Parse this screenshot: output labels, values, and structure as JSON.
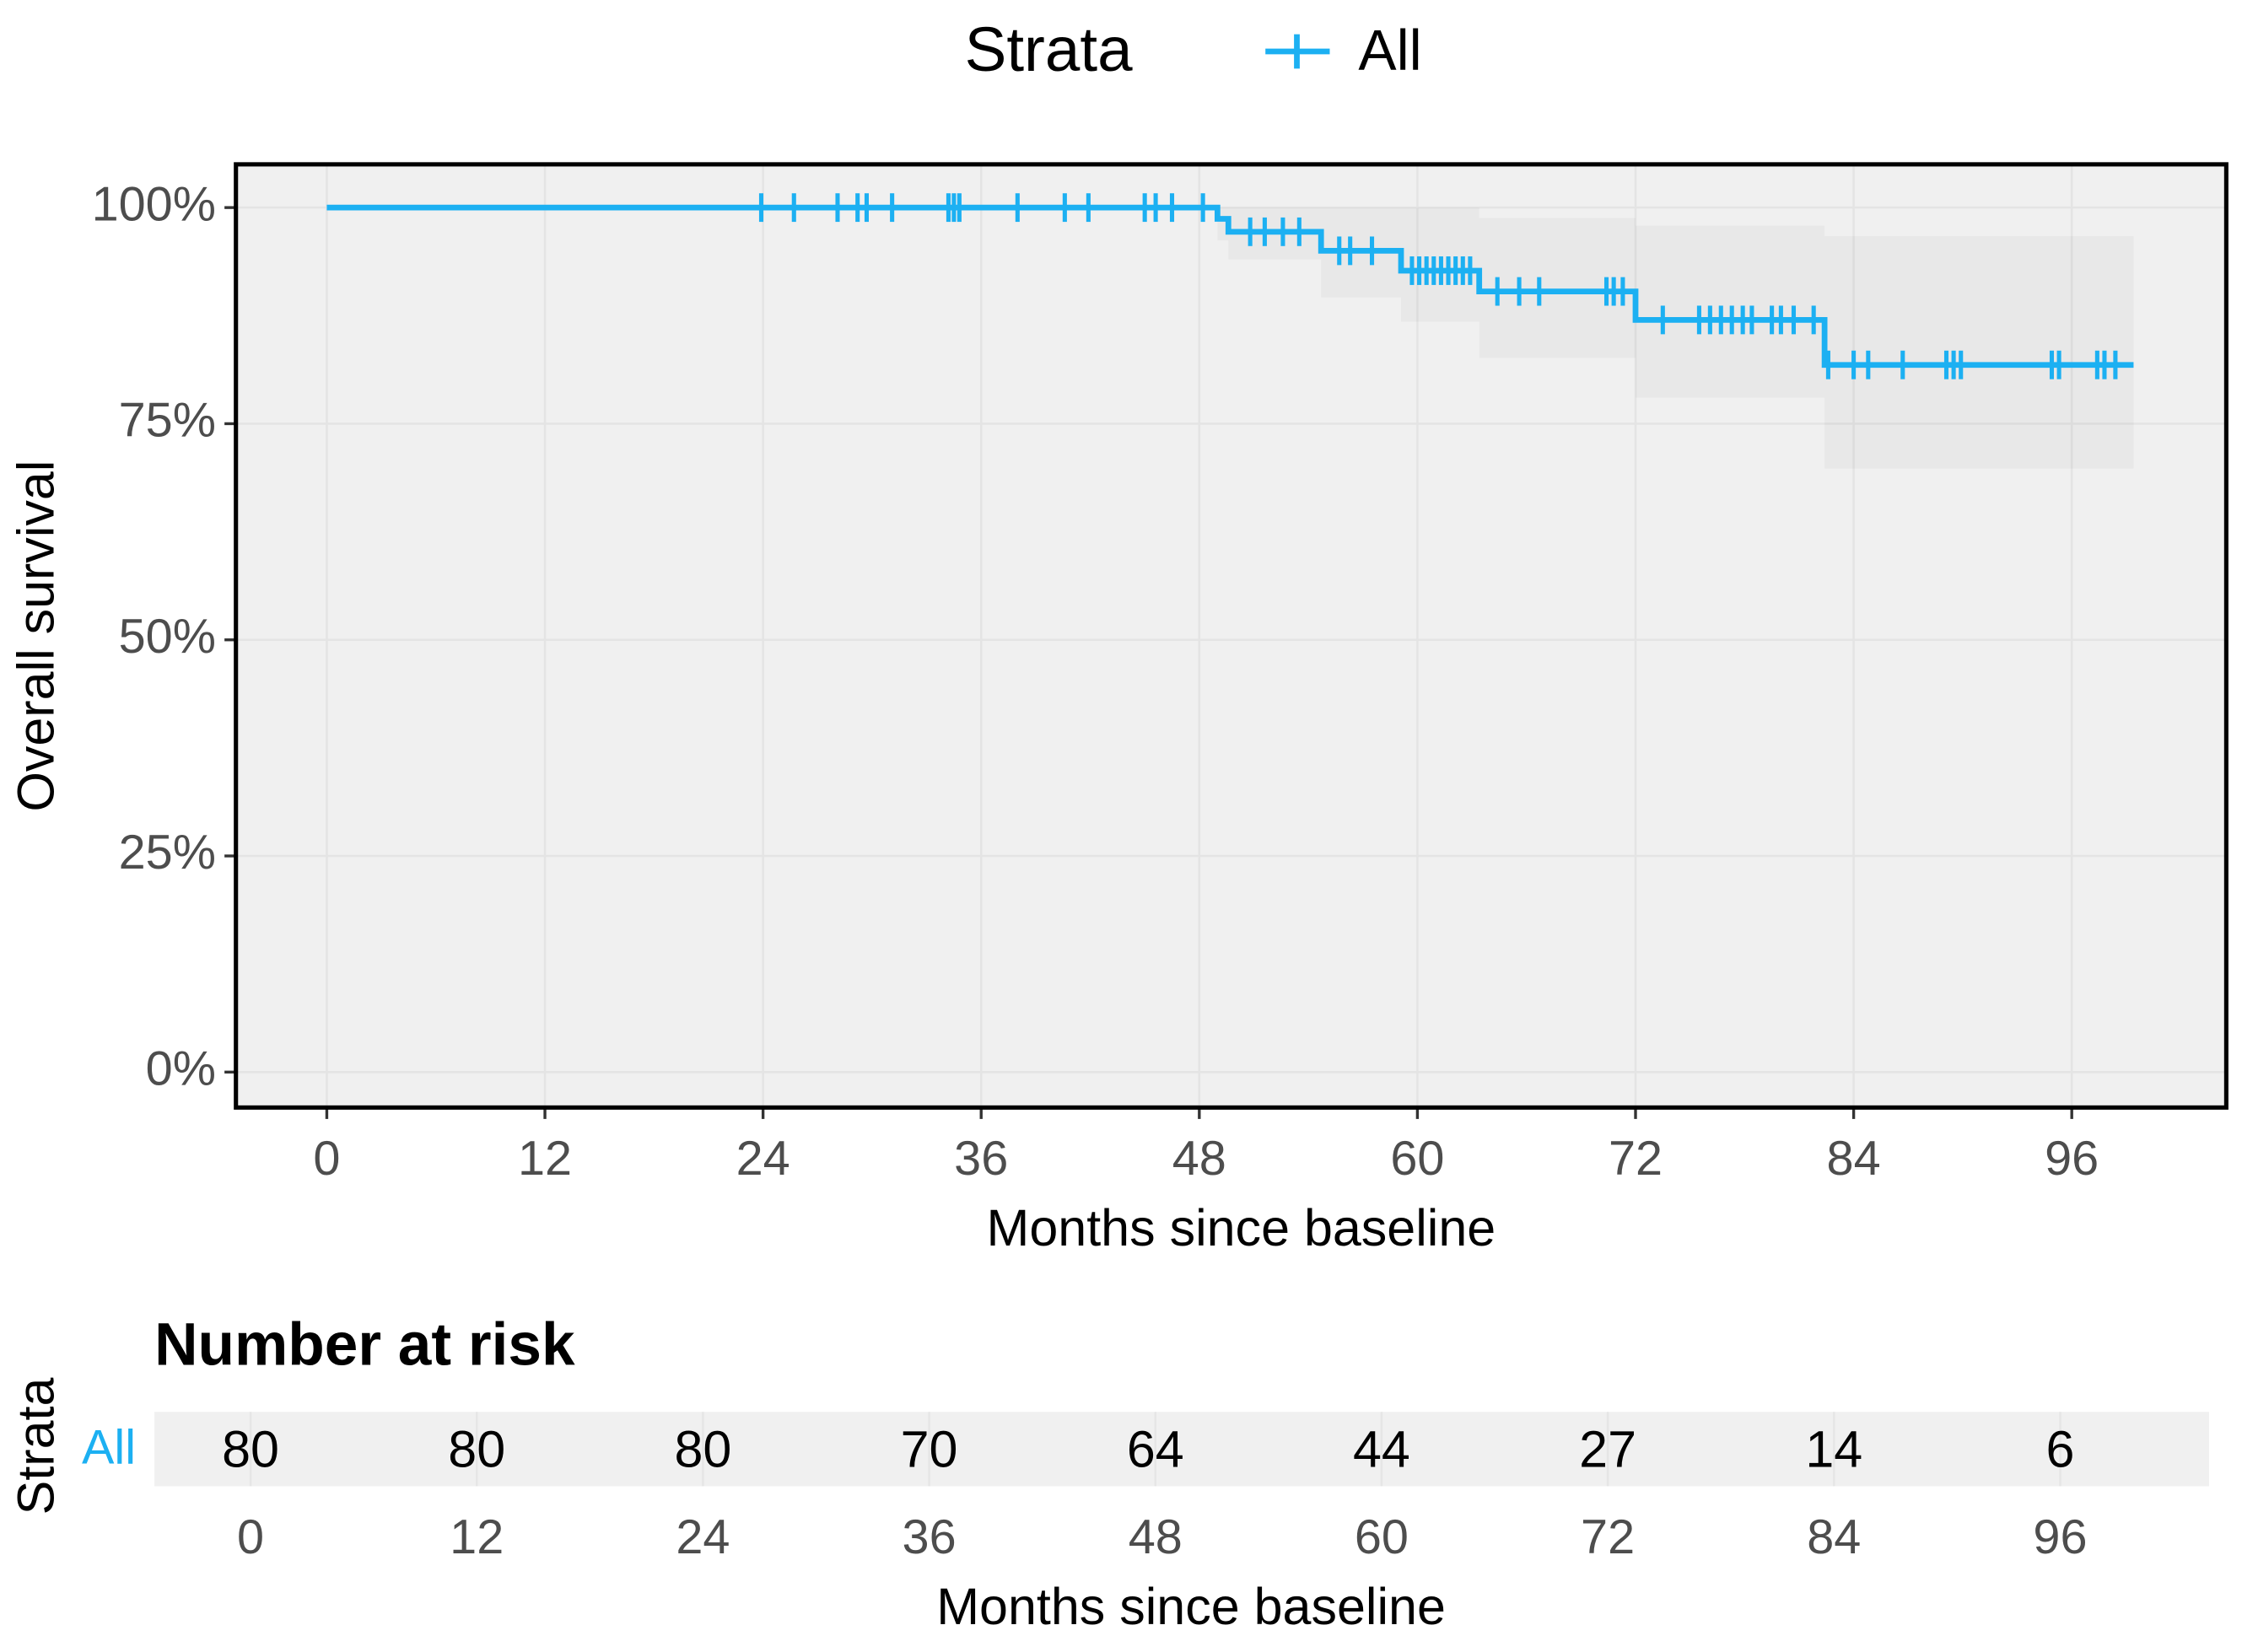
{
  "chart_data": [
    {
      "type": "survival",
      "x_label": "Months since baseline",
      "y_label": "Overall survival",
      "legend_title": "Strata",
      "legend": "top",
      "xlim": [
        -5,
        104.5
      ],
      "ylim": [
        -4.1,
        105
      ],
      "xticks": [
        0,
        12,
        24,
        36,
        48,
        60,
        72,
        84,
        96
      ],
      "yticks": [
        {
          "value": 0,
          "label": "0%"
        },
        {
          "value": 25,
          "label": "25%"
        },
        {
          "value": 50,
          "label": "50%"
        },
        {
          "value": 75,
          "label": "75%"
        },
        {
          "value": 100,
          "label": "100%"
        }
      ],
      "grid": true,
      "series": [
        {
          "name": "All",
          "color": "#1cb0f2",
          "x": [
            0,
            49,
            49,
            49.6,
            49.6,
            54.7,
            54.7,
            59.1,
            59.1,
            63.4,
            63.4,
            72,
            72,
            82.4,
            82.4,
            99.4
          ],
          "values": [
            100,
            100,
            98.7,
            98.7,
            97.2,
            97.2,
            95,
            95,
            92.7,
            92.7,
            90.3,
            90.3,
            87,
            87,
            81.8,
            81.8
          ],
          "lower": [
            100,
            100,
            96.2,
            96.2,
            94,
            94,
            89.6,
            89.6,
            86.8,
            86.8,
            82.6,
            82.6,
            78,
            78,
            69.8,
            69.8
          ],
          "upper": [
            100,
            100,
            100,
            100,
            100,
            100,
            100,
            100,
            100,
            100,
            98.8,
            98.8,
            97.9,
            97.9,
            96.7,
            96.7
          ],
          "censor": {
            "x": [
              23.9,
              25.7,
              28.1,
              29.2,
              29.7,
              31.1,
              34.2,
              34.5,
              34.8,
              38.0,
              40.6,
              41.9,
              45.0,
              45.6,
              46.5,
              48.2,
              50.8,
              51.6,
              52.6,
              53.5,
              55.7,
              56.3,
              57.5,
              59.7,
              60.1,
              60.5,
              60.9,
              61.3,
              61.7,
              62.1,
              62.5,
              62.9,
              64.4,
              65.6,
              66.7,
              70.4,
              70.8,
              71.3,
              73.5,
              75.5,
              76.1,
              76.7,
              77.3,
              77.9,
              78.4,
              79.5,
              80.0,
              80.7,
              81.8,
              82.6,
              84.0,
              84.8,
              86.7,
              89.1,
              89.5,
              89.9,
              94.9,
              95.3,
              97.4,
              97.8,
              98.4
            ],
            "values": [
              100,
              100,
              100,
              100,
              100,
              100,
              100,
              100,
              100,
              100,
              100,
              100,
              100,
              100,
              100,
              100,
              97.2,
              97.2,
              97.2,
              97.2,
              95,
              95,
              95,
              92.7,
              92.7,
              92.7,
              92.7,
              92.7,
              92.7,
              92.7,
              92.7,
              92.7,
              90.3,
              90.3,
              90.3,
              90.3,
              90.3,
              90.3,
              87,
              87,
              87,
              87,
              87,
              87,
              87,
              87,
              87,
              87,
              87,
              81.8,
              81.8,
              81.8,
              81.8,
              81.8,
              81.8,
              81.8,
              81.8,
              81.8,
              81.8,
              81.8,
              81.8
            ]
          }
        }
      ]
    },
    {
      "type": "risk_table",
      "title": "Number at risk",
      "x_label": "Months since baseline",
      "y_label": "Strata",
      "xlim": [
        -5.1,
        103.9
      ],
      "xticks": [
        0,
        12,
        24,
        36,
        48,
        60,
        72,
        84,
        96
      ],
      "series": [
        {
          "name": "All",
          "color": "#1cb0f2",
          "values": [
            80,
            80,
            80,
            70,
            64,
            44,
            27,
            14,
            6
          ]
        }
      ]
    }
  ]
}
